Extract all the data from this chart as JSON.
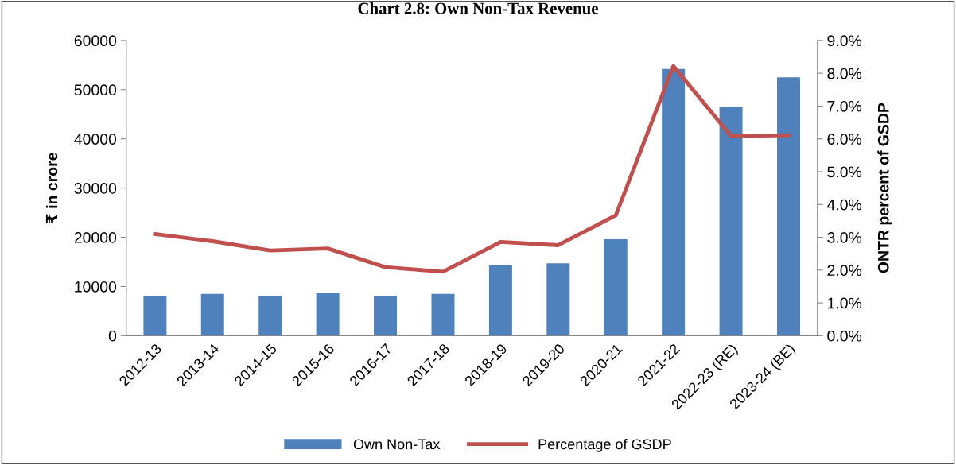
{
  "chart_data": {
    "type": "bar",
    "title": "Chart 2.8: Own Non-Tax Revenue",
    "categories": [
      "2012-13",
      "2013-14",
      "2014-15",
      "2015-16",
      "2016-17",
      "2017-18",
      "2018-19",
      "2019-20",
      "2020-21",
      "2021-22",
      "2022-23 (RE)",
      "2023-24 (BE)"
    ],
    "series": [
      {
        "name": "Own Non-Tax",
        "color": "#4f81bd",
        "values": [
          8100,
          8500,
          8100,
          8800,
          8100,
          8500,
          14300,
          14700,
          19600,
          54200,
          46500,
          52500
        ]
      },
      {
        "name": "Percentage of GSDP",
        "type": "line",
        "axis": "y2",
        "color": "#c0504d",
        "values": [
          3.1,
          2.88,
          2.6,
          2.66,
          2.09,
          1.95,
          2.86,
          2.76,
          3.67,
          8.22,
          6.09,
          6.11
        ]
      }
    ],
    "ylabel": "₹ in crore",
    "y2label": "ONTR percent of GSDP",
    "ylim": [
      0,
      60000
    ],
    "yticks": [
      0,
      10000,
      20000,
      30000,
      40000,
      50000,
      60000
    ],
    "y2lim": [
      0,
      9
    ],
    "y2ticks": [
      {
        "value": 0,
        "label": "0.0%"
      },
      {
        "value": 1,
        "label": "1.0%"
      },
      {
        "value": 2,
        "label": "2.0%"
      },
      {
        "value": 3,
        "label": "3.0%"
      },
      {
        "value": 4,
        "label": "4.0%"
      },
      {
        "value": 5,
        "label": "5.0%"
      },
      {
        "value": 6,
        "label": "6.0%"
      },
      {
        "value": 7,
        "label": "7.0%"
      },
      {
        "value": 8,
        "label": "8.0%"
      },
      {
        "value": 9,
        "label": "9.0%"
      }
    ],
    "legend": "bottom",
    "marker": "none",
    "line_style": "solid"
  }
}
